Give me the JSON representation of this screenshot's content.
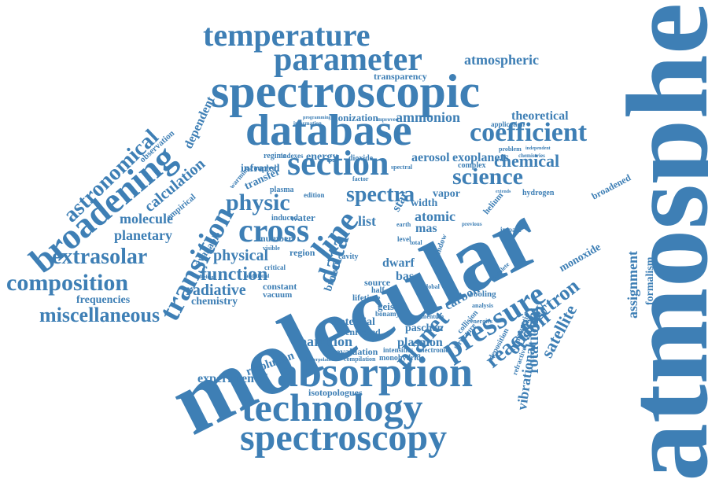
{
  "colors": {
    "word": "#3e7fb5",
    "background": "#ffffff"
  },
  "words": {
    "atmosphere": "atmosphere",
    "molecular": "molecular",
    "spectroscopic": "spectroscopic",
    "database": "database",
    "absorption": "absorption",
    "technology": "technology",
    "spectroscopy": "spectroscopy",
    "broadening": "broadening",
    "temperature": "temperature",
    "parameter": "parameter",
    "section": "section",
    "coefficient": "coefficient",
    "transition": "transition",
    "astronomical": "astronomical",
    "composition": "composition",
    "miscellaneous": "miscellaneous",
    "extrasolar": "extrasolar",
    "cross": "cross",
    "line": "line",
    "data": "data",
    "pressure": "pressure",
    "planet": "planet",
    "reaction": "reaction",
    "opacity": "opacity",
    "electron": "electron",
    "satellite": "satellite",
    "science": "science",
    "chemical": "chemical",
    "physic": "physic",
    "spectra": "spectra",
    "function": "function",
    "radiative": "radiative",
    "physical": "physical",
    "molecule": "molecule",
    "planetary": "planetary",
    "calculation": "calculation",
    "empirical": "empirical",
    "dependent": "dependent",
    "observation": "observation",
    "ammonion": "ammonion",
    "ionization": "ionization",
    "theoretical": "theoretical",
    "exoplanets": "exoplanets",
    "aerosol": "aerosol",
    "energy": "energy",
    "infrared": "infrared",
    "transfer": "transfer",
    "atomic": "atomic",
    "vapor": "vapor",
    "width": "width",
    "mas": "mas",
    "list": "list",
    "star": "star",
    "atmospheric": "atmospheric",
    "transparency": "transparency",
    "partition": "partition",
    "potential": "potential",
    "evaluation": "evaluation",
    "enriched": "enriched",
    "plasmon": "plasmon",
    "paschen": "paschen",
    "resolution": "resolution",
    "experimental": "experimental",
    "isotopologues": "isotopologues",
    "frequencies": "frequencies",
    "chemistry": "chemistry",
    "constant": "constant",
    "vacuum": "vacuum",
    "available": "available",
    "rotational": "rotational",
    "vibrational": "vibrational",
    "assignment": "assignment",
    "formalism": "formalism",
    "broadened": "broadened",
    "monoxide": "monoxide",
    "carbon": "carbon",
    "cooling": "cooling",
    "base": "base",
    "dwarf": "dwarf",
    "brown": "brown",
    "geison": "geison",
    "bonamy": "bonamy",
    "lifetime": "lifetime",
    "water": "water",
    "plasma": "plasma",
    "induced": "induced",
    "regime": "regime",
    "coupled": "coupled",
    "warming": "warming",
    "indexes": "indexes",
    "dioxide": "dioxide",
    "edition": "edition",
    "helium": "helium",
    "hydrogen": "hydrogen",
    "application": "application",
    "problem": "problem",
    "complex": "complex",
    "impact": "impact",
    "window": "window",
    "source": "source",
    "number": "number",
    "half": "half",
    "region": "region",
    "cavity": "cavity",
    "intensities": "intensities",
    "electronic": "electronic",
    "momentum": "momentum",
    "monohydride": "monohydride",
    "compilation": "compilation",
    "collision": "collision",
    "analysis": "analysis",
    "structure": "structure",
    "deposition": "deposition",
    "refractive": "refractive",
    "magnetic": "magnetic",
    "factor": "factor",
    "spectral": "spectral",
    "improved": "improved",
    "information": "information",
    "programming": "programming",
    "critical": "critical",
    "visible": "visible",
    "level": "level",
    "total": "total",
    "earth": "earth",
    "global": "global",
    "energies": "energies",
    "complete": "complete",
    "chemistries": "chemistries",
    "independent": "independent",
    "interpolation": "interpolation",
    "previous": "previous",
    "additional": "additional",
    "labeling": "labeling",
    "extends": "extends"
  }
}
